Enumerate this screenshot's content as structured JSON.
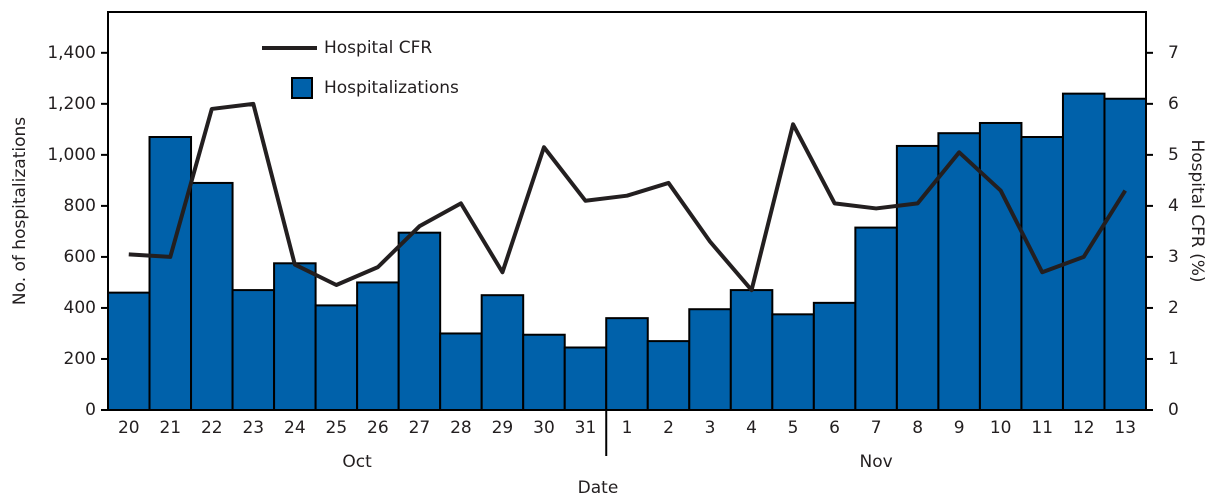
{
  "chart_data": {
    "type": "bar-line",
    "x_label": "Date",
    "y_label": "No. of hospitalizations",
    "y2_label": "Hospital CFR (%)",
    "categories": [
      "20",
      "21",
      "22",
      "23",
      "24",
      "25",
      "26",
      "27",
      "28",
      "29",
      "30",
      "31",
      "1",
      "2",
      "3",
      "4",
      "5",
      "6",
      "7",
      "8",
      "9",
      "10",
      "11",
      "12",
      "13"
    ],
    "months": [
      "Oct",
      "Nov"
    ],
    "series": [
      {
        "name": "Hospitalizations",
        "type": "bar",
        "color": "#0061aa",
        "values": [
          460,
          1070,
          890,
          470,
          575,
          410,
          500,
          695,
          300,
          450,
          295,
          245,
          360,
          270,
          395,
          470,
          375,
          420,
          715,
          1035,
          1085,
          1125,
          1070,
          1240,
          1220
        ]
      },
      {
        "name": "Hospital CFR",
        "type": "line",
        "axis": "y2",
        "color": "#231f20",
        "values": [
          3.05,
          3.0,
          5.9,
          6.0,
          2.85,
          2.45,
          2.8,
          3.6,
          4.05,
          2.7,
          5.15,
          4.1,
          4.2,
          4.45,
          3.3,
          2.35,
          5.6,
          4.05,
          3.95,
          4.05,
          5.05,
          4.3,
          2.7,
          3.0,
          4.3
        ]
      }
    ],
    "ylim": [
      0,
      1560
    ],
    "yticks": [
      0,
      200,
      400,
      600,
      800,
      {
        "value": 1000,
        "label": "1,000"
      },
      {
        "value": 1200,
        "label": "1,200"
      },
      {
        "value": 1400,
        "label": "1,400"
      }
    ],
    "y2lim": [
      0,
      7.8
    ],
    "y2ticks": [
      0,
      1,
      2,
      3,
      4,
      5,
      6,
      7
    ],
    "legend": "upper left"
  }
}
